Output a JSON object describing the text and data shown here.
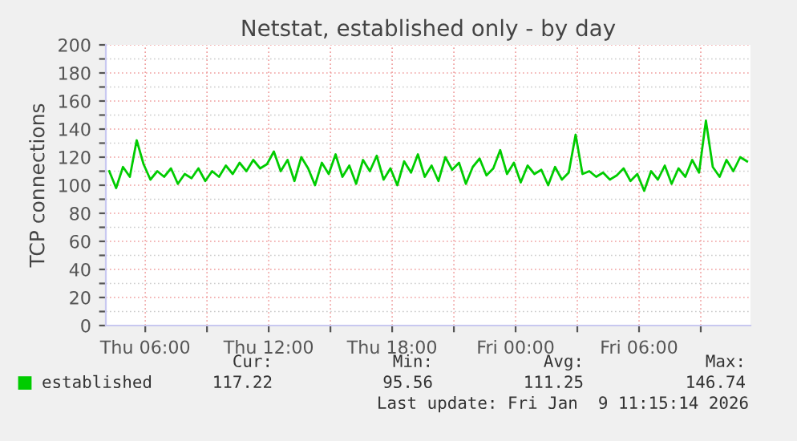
{
  "chart_data": {
    "type": "line",
    "title": "Netstat, established only - by day",
    "ylabel": "TCP connections",
    "x": [
      "2026-01-08T04:15",
      "2026-01-08T04:35",
      "2026-01-08T04:55",
      "2026-01-08T05:15",
      "2026-01-08T05:35",
      "2026-01-08T05:55",
      "2026-01-08T06:15",
      "2026-01-08T06:35",
      "2026-01-08T06:55",
      "2026-01-08T07:15",
      "2026-01-08T07:35",
      "2026-01-08T07:55",
      "2026-01-08T08:15",
      "2026-01-08T08:35",
      "2026-01-08T08:55",
      "2026-01-08T09:15",
      "2026-01-08T09:35",
      "2026-01-08T09:55",
      "2026-01-08T10:15",
      "2026-01-08T10:35",
      "2026-01-08T10:55",
      "2026-01-08T11:15",
      "2026-01-08T11:35",
      "2026-01-08T11:55",
      "2026-01-08T12:15",
      "2026-01-08T12:35",
      "2026-01-08T12:55",
      "2026-01-08T13:15",
      "2026-01-08T13:35",
      "2026-01-08T13:55",
      "2026-01-08T14:15",
      "2026-01-08T14:35",
      "2026-01-08T14:55",
      "2026-01-08T15:15",
      "2026-01-08T15:35",
      "2026-01-08T15:55",
      "2026-01-08T16:15",
      "2026-01-08T16:35",
      "2026-01-08T16:55",
      "2026-01-08T17:15",
      "2026-01-08T17:35",
      "2026-01-08T17:55",
      "2026-01-08T18:15",
      "2026-01-08T18:35",
      "2026-01-08T18:55",
      "2026-01-08T19:15",
      "2026-01-08T19:35",
      "2026-01-08T19:55",
      "2026-01-08T20:15",
      "2026-01-08T20:35",
      "2026-01-08T20:55",
      "2026-01-08T21:15",
      "2026-01-08T21:35",
      "2026-01-08T21:55",
      "2026-01-08T22:15",
      "2026-01-08T22:35",
      "2026-01-08T22:55",
      "2026-01-08T23:15",
      "2026-01-08T23:35",
      "2026-01-08T23:55",
      "2026-01-09T00:15",
      "2026-01-09T00:35",
      "2026-01-09T00:55",
      "2026-01-09T01:15",
      "2026-01-09T01:35",
      "2026-01-09T01:55",
      "2026-01-09T02:15",
      "2026-01-09T02:35",
      "2026-01-09T02:55",
      "2026-01-09T03:15",
      "2026-01-09T03:35",
      "2026-01-09T03:55",
      "2026-01-09T04:15",
      "2026-01-09T04:35",
      "2026-01-09T04:55",
      "2026-01-09T05:15",
      "2026-01-09T05:35",
      "2026-01-09T05:55",
      "2026-01-09T06:15",
      "2026-01-09T06:35",
      "2026-01-09T06:55",
      "2026-01-09T07:15",
      "2026-01-09T07:35",
      "2026-01-09T07:55",
      "2026-01-09T08:15",
      "2026-01-09T08:35",
      "2026-01-09T08:55",
      "2026-01-09T09:15",
      "2026-01-09T09:35",
      "2026-01-09T09:55",
      "2026-01-09T10:15",
      "2026-01-09T10:35",
      "2026-01-09T10:55",
      "2026-01-09T11:15"
    ],
    "series": [
      {
        "name": "established",
        "color": "#00cc00",
        "values": [
          110,
          98,
          113,
          106,
          132,
          115,
          104,
          110,
          106,
          112,
          101,
          108,
          105,
          112,
          103,
          110,
          106,
          114,
          108,
          116,
          110,
          118,
          112,
          115,
          124,
          110,
          118,
          103,
          120,
          112,
          100,
          116,
          108,
          122,
          106,
          114,
          101,
          118,
          110,
          121,
          104,
          112,
          100,
          117,
          109,
          122,
          106,
          114,
          103,
          120,
          111,
          116,
          101,
          113,
          119,
          107,
          112,
          125,
          108,
          116,
          102,
          114,
          108,
          111,
          100,
          113,
          104,
          109,
          136,
          108,
          110,
          106,
          109,
          104,
          107,
          112,
          103,
          108,
          96,
          110,
          104,
          114,
          101,
          112,
          106,
          118,
          109,
          146,
          113,
          106,
          118,
          110,
          120,
          117
        ]
      }
    ],
    "xlim": [
      "2026-01-08T04:05",
      "2026-01-09T11:25"
    ],
    "xticks": [
      {
        "value": "2026-01-08T06:00",
        "label": "Thu 06:00"
      },
      {
        "value": "2026-01-08T09:00",
        "label": null
      },
      {
        "value": "2026-01-08T12:00",
        "label": "Thu 12:00"
      },
      {
        "value": "2026-01-08T15:00",
        "label": null
      },
      {
        "value": "2026-01-08T18:00",
        "label": "Thu 18:00"
      },
      {
        "value": "2026-01-08T21:00",
        "label": null
      },
      {
        "value": "2026-01-09T00:00",
        "label": "Fri 00:00"
      },
      {
        "value": "2026-01-09T03:00",
        "label": null
      },
      {
        "value": "2026-01-09T06:00",
        "label": "Fri 06:00"
      },
      {
        "value": "2026-01-09T09:00",
        "label": null
      }
    ],
    "ylim": [
      0,
      200
    ],
    "yticks": [
      0,
      {
        "value": 10,
        "label": null
      },
      20,
      {
        "value": 30,
        "label": null
      },
      40,
      {
        "value": 50,
        "label": null
      },
      60,
      {
        "value": 70,
        "label": null
      },
      80,
      {
        "value": 90,
        "label": null
      },
      100,
      {
        "value": 110,
        "label": null
      },
      120,
      {
        "value": 130,
        "label": null
      },
      140,
      {
        "value": 150,
        "label": null
      },
      160,
      {
        "value": 170,
        "label": null
      },
      180,
      {
        "value": 190,
        "label": null
      },
      200
    ],
    "grid": true,
    "legend": "bottom left",
    "annotations": [
      "Cur:",
      "117.22",
      "Min:",
      "95.56",
      "Avg:",
      "111.25",
      "Max:",
      "146.74",
      "Last update: Fri Jan  9 11:15:14 2026"
    ]
  }
}
